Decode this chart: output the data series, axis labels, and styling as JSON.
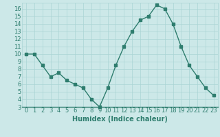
{
  "x": [
    0,
    1,
    2,
    3,
    4,
    5,
    6,
    7,
    8,
    9,
    10,
    11,
    12,
    13,
    14,
    15,
    16,
    17,
    18,
    19,
    20,
    21,
    22,
    23
  ],
  "y": [
    10,
    10,
    8.5,
    7,
    7.5,
    6.5,
    6,
    5.5,
    4,
    3,
    5.5,
    8.5,
    11,
    13,
    14.5,
    15,
    16.5,
    16,
    14,
    11,
    8.5,
    7,
    5.5,
    4.5
  ],
  "xlabel": "Humidex (Indice chaleur)",
  "line_color": "#2e7d6e",
  "marker_color": "#2e7d6e",
  "bg_color": "#cce8e8",
  "grid_color": "#aad4d4",
  "ylim": [
    3,
    16.8
  ],
  "xlim": [
    -0.5,
    23.5
  ],
  "yticks": [
    3,
    4,
    5,
    6,
    7,
    8,
    9,
    10,
    11,
    12,
    13,
    14,
    15,
    16
  ],
  "xticks": [
    0,
    1,
    2,
    3,
    4,
    5,
    6,
    7,
    8,
    9,
    10,
    11,
    12,
    13,
    14,
    15,
    16,
    17,
    18,
    19,
    20,
    21,
    22,
    23
  ],
  "xtick_labels": [
    "0",
    "1",
    "2",
    "3",
    "4",
    "5",
    "6",
    "7",
    "8",
    "9",
    "10",
    "11",
    "12",
    "13",
    "14",
    "15",
    "16",
    "17",
    "18",
    "19",
    "20",
    "21",
    "22",
    "23"
  ],
  "ytick_labels": [
    "3",
    "4",
    "5",
    "6",
    "7",
    "8",
    "9",
    "10",
    "11",
    "12",
    "13",
    "14",
    "15",
    "16"
  ],
  "xlabel_fontsize": 7,
  "tick_fontsize": 6,
  "line_width": 1.0,
  "marker_size": 2.5
}
